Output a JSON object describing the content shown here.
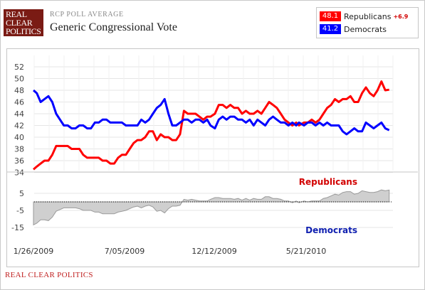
{
  "header": {
    "logo_lines": [
      "REAL",
      "CLEAR",
      "POLITICS"
    ],
    "kicker": "RCP POLL AVERAGE",
    "title": "Generic Congressional Vote"
  },
  "legend": {
    "republicans": {
      "value": "48.1",
      "name": "Republicans",
      "spread": "+6.9",
      "color": "#ff0000"
    },
    "democrats": {
      "value": "41.2",
      "name": "Democrats",
      "color": "#0000ff"
    }
  },
  "footer": {
    "source": "REAL CLEAR POLITICS"
  },
  "chart_data": [
    {
      "type": "line",
      "ylim": [
        33,
        53
      ],
      "yticks": [
        34,
        36,
        38,
        40,
        42,
        44,
        46,
        48,
        50,
        52
      ],
      "xticks": [
        "1/26/2009",
        "7/05/2009",
        "12/12/2009",
        "5/21/2010"
      ],
      "grid": true,
      "legend_position": "top-right",
      "x_dates": [
        "2009-01-26",
        "2009-02-01",
        "2009-02-08",
        "2009-02-15",
        "2009-02-22",
        "2009-03-01",
        "2009-03-08",
        "2009-03-15",
        "2009-03-22",
        "2009-03-29",
        "2009-04-05",
        "2009-04-12",
        "2009-04-19",
        "2009-04-26",
        "2009-05-03",
        "2009-05-10",
        "2009-05-17",
        "2009-05-24",
        "2009-05-31",
        "2009-06-07",
        "2009-06-14",
        "2009-06-21",
        "2009-06-28",
        "2009-07-05",
        "2009-07-12",
        "2009-07-19",
        "2009-07-26",
        "2009-08-02",
        "2009-08-09",
        "2009-08-16",
        "2009-08-23",
        "2009-08-30",
        "2009-09-06",
        "2009-09-13",
        "2009-09-20",
        "2009-09-27",
        "2009-10-04",
        "2009-10-11",
        "2009-10-18",
        "2009-10-25",
        "2009-11-01",
        "2009-11-08",
        "2009-11-15",
        "2009-11-22",
        "2009-11-29",
        "2009-12-06",
        "2009-12-12",
        "2009-12-20",
        "2009-12-27",
        "2010-01-03",
        "2010-01-10",
        "2010-01-17",
        "2010-01-24",
        "2010-01-31",
        "2010-02-07",
        "2010-02-14",
        "2010-02-21",
        "2010-02-28",
        "2010-03-07",
        "2010-03-14",
        "2010-03-21",
        "2010-03-28",
        "2010-04-04",
        "2010-04-11",
        "2010-04-18",
        "2010-04-25",
        "2010-05-02",
        "2010-05-09",
        "2010-05-16",
        "2010-05-21",
        "2010-05-30",
        "2010-06-06",
        "2010-06-13",
        "2010-06-20",
        "2010-06-27",
        "2010-07-04",
        "2010-07-11",
        "2010-07-18",
        "2010-07-25",
        "2010-08-01",
        "2010-08-08",
        "2010-08-15",
        "2010-08-22",
        "2010-08-29",
        "2010-09-05",
        "2010-09-12",
        "2010-09-19",
        "2010-09-26",
        "2010-10-03",
        "2010-10-10",
        "2010-10-17",
        "2010-10-24",
        "2010-10-31"
      ],
      "series": [
        {
          "name": "Republicans",
          "color": "#ff0000",
          "values": [
            34.5,
            35,
            35.5,
            36,
            36,
            37,
            38.5,
            38.5,
            38.5,
            38.5,
            38,
            38,
            38,
            37,
            36.5,
            36.5,
            36.5,
            36.5,
            36,
            36,
            35.5,
            35.5,
            36.5,
            37,
            37,
            38,
            39,
            39.5,
            39.5,
            40,
            41,
            41,
            39.5,
            40.5,
            40,
            40,
            39.5,
            39.5,
            40.5,
            44.5,
            44,
            44,
            44,
            43.5,
            43,
            43.5,
            43.5,
            44,
            45.5,
            45.5,
            45,
            45.5,
            45,
            45,
            44,
            44.5,
            44,
            44,
            44.5,
            44,
            45,
            46,
            45.5,
            45,
            44,
            43,
            42.5,
            42,
            42.5,
            42,
            42.5,
            42.5,
            43,
            42.5,
            43,
            44,
            45,
            45.5,
            46.5,
            46,
            46.5,
            46.5,
            47,
            46,
            46,
            47.5,
            48.5,
            47.5,
            47,
            48,
            49.5,
            48,
            48.1
          ]
        },
        {
          "name": "Democrats",
          "color": "#0000ff",
          "values": [
            48,
            47.5,
            46,
            46.5,
            47,
            46,
            44,
            43,
            42,
            42,
            41.5,
            41.5,
            42,
            42,
            41.5,
            41.5,
            42.5,
            42.5,
            43,
            43,
            42.5,
            42.5,
            42.5,
            42.5,
            42,
            42,
            42,
            42,
            43,
            42.5,
            43,
            44,
            45,
            45.5,
            46.5,
            44,
            42,
            42,
            42.5,
            43,
            43,
            42.5,
            43,
            43,
            42.5,
            43,
            42,
            41.5,
            43,
            43.5,
            43,
            43.5,
            43.5,
            43,
            43,
            42.5,
            43,
            42,
            43,
            42.5,
            42,
            43,
            43.5,
            43,
            42.5,
            42.5,
            42,
            42.5,
            42,
            42.5,
            42,
            42.5,
            42.5,
            42,
            42.5,
            42,
            42.5,
            42,
            42,
            42,
            41,
            40.5,
            41,
            41.5,
            41,
            41,
            42.5,
            42,
            41.5,
            42,
            42.5,
            41.5,
            41.2
          ]
        }
      ]
    },
    {
      "type": "area",
      "ylim": [
        -18,
        10
      ],
      "yticks": [
        5,
        -5,
        -15
      ],
      "baseline": 0,
      "annotations": [
        "Republicans",
        "Democrats"
      ],
      "annotation_colors": [
        "#d20000",
        "#1020b0"
      ],
      "values_formula": "Republicans minus Democrats (spread)"
    }
  ]
}
